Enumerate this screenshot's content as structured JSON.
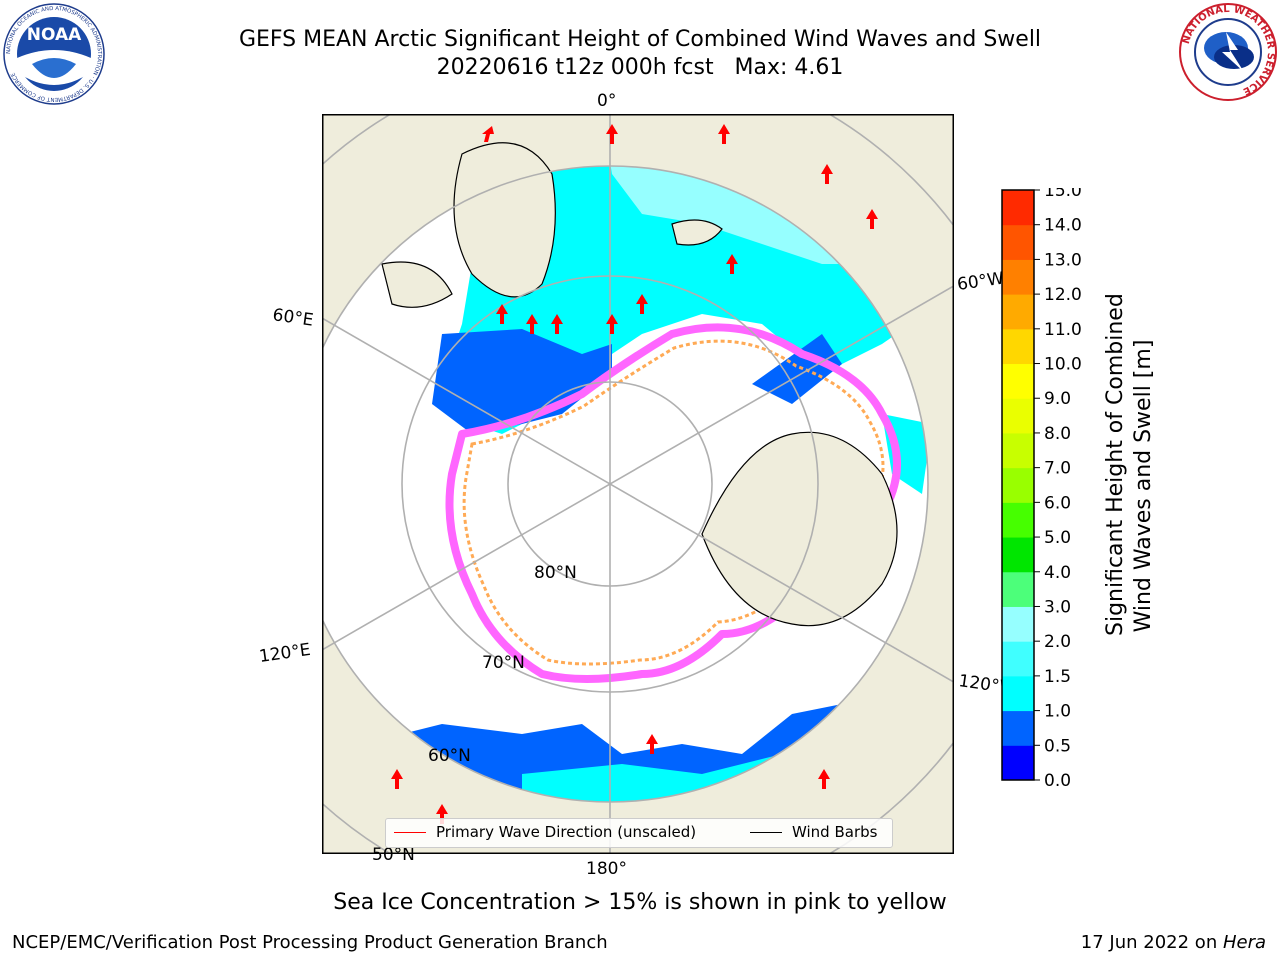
{
  "header": {
    "title_line1": "GEFS MEAN Arctic Significant Height of Combined Wind Waves and Swell",
    "title_line2": "20220616 t12z 000h fcst   Max: 4.61"
  },
  "logos": {
    "left": {
      "name": "NOAA",
      "ring_text": "NATIONAL OCEANIC AND ATMOSPHERIC ADMINISTRATION · U.S. DEPARTMENT OF COMMERCE"
    },
    "right": {
      "ring_text": "NATIONAL WEATHER SERVICE"
    }
  },
  "map": {
    "projection": "north-polar-stereographic",
    "lon_labels": [
      "0°",
      "60°E",
      "120°E",
      "180°",
      "120°W",
      "60°W"
    ],
    "lat_labels": [
      "80°N",
      "70°N",
      "60°N",
      "50°N"
    ],
    "colors": {
      "land": "#efeddc",
      "ocean_fill": "#ffffff",
      "gridline": "#b0b0b0",
      "ice": "#ff66ff",
      "arrow": "#ff0000"
    }
  },
  "colorbar": {
    "label": "Significant Height of Combined\nWind Waves and Swell [m]",
    "ticks": [
      "0.0",
      "0.5",
      "1.0",
      "1.5",
      "2.0",
      "3.0",
      "4.0",
      "5.0",
      "6.0",
      "7.0",
      "8.0",
      "9.0",
      "10.0",
      "11.0",
      "12.0",
      "13.0",
      "14.0",
      "15.0"
    ],
    "colors": [
      "#0000ff",
      "#0064ff",
      "#00ffff",
      "#40ffff",
      "#96ffff",
      "#4cff7a",
      "#00e600",
      "#46ff00",
      "#99ff00",
      "#c8ff00",
      "#eaff00",
      "#ffff00",
      "#ffd700",
      "#ffaa00",
      "#ff8000",
      "#ff5500",
      "#ff2a00",
      "#ff0000"
    ]
  },
  "legend": {
    "primary_wave": "Primary Wave Direction (unscaled)",
    "wind_barbs": "Wind Barbs",
    "colors": {
      "primary_wave": "#ff0000",
      "wind_barbs": "#000000"
    }
  },
  "caption": "Sea Ice Concentration > 15% is shown in pink to yellow",
  "footer": {
    "left": "NCEP/EMC/Verification Post Processing Product Generation Branch",
    "right_prefix": "17 Jun 2022 on ",
    "right_machine": "Hera"
  }
}
